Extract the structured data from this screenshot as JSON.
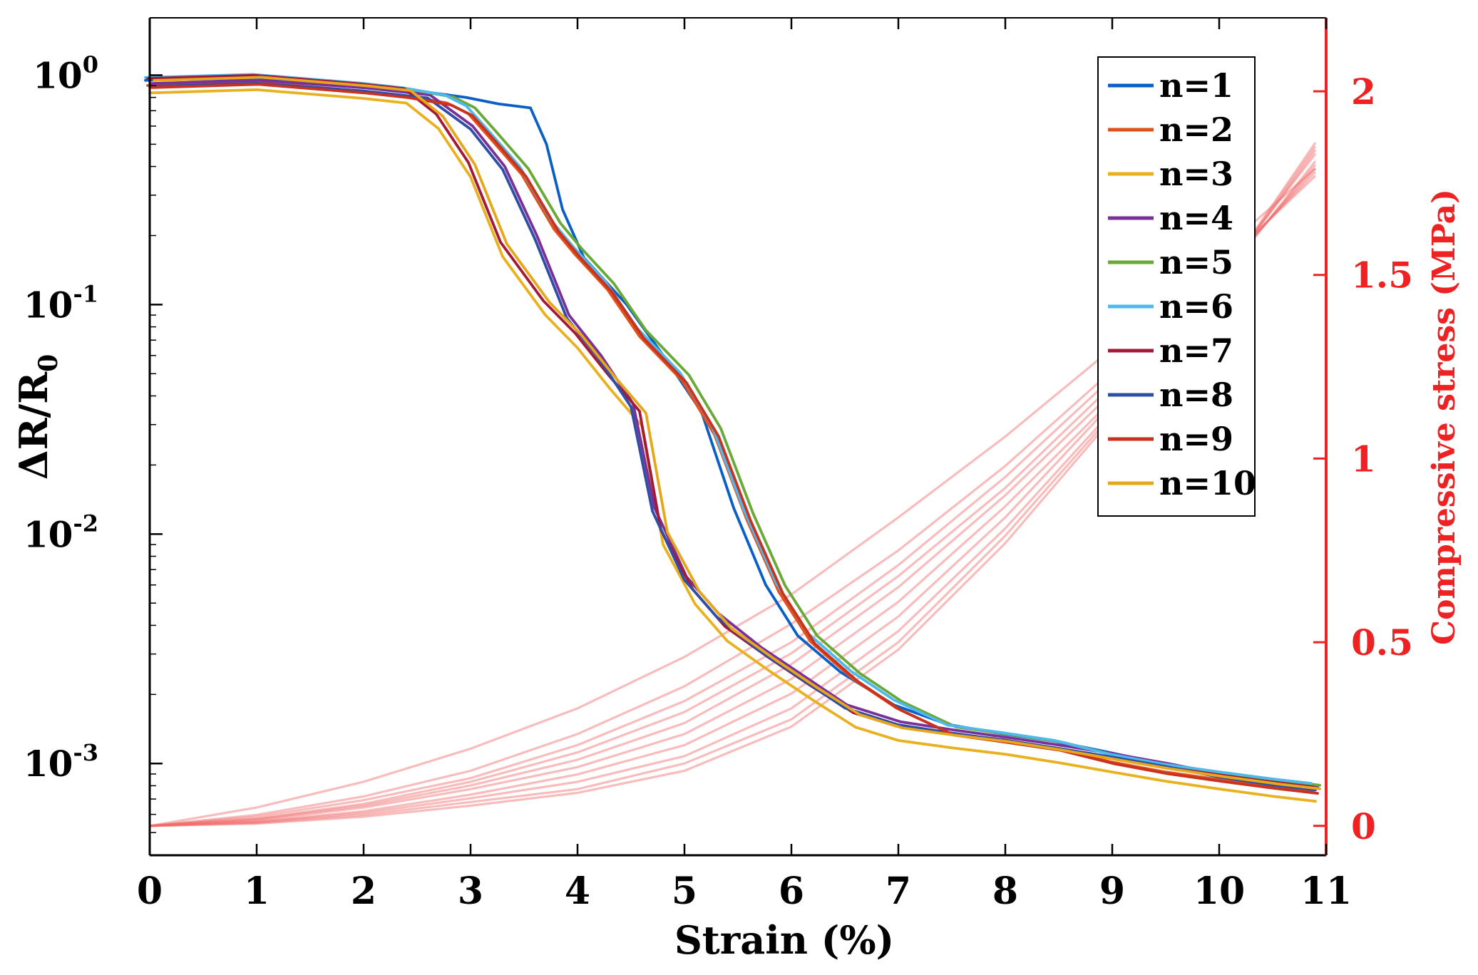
{
  "chart_data": {
    "type": "line",
    "title": "",
    "xlabel": "Strain (%)",
    "ylabel_left": "ΔR/R",
    "ylabel_left_sub": "0",
    "ylabel_right": "Compressive stress (MPa)",
    "xlim": [
      0,
      11
    ],
    "ylim_left_log10": [
      -3.4,
      0.25
    ],
    "ylim_right": [
      -0.08,
      2.2
    ],
    "x_ticks": [
      "0",
      "1",
      "2",
      "3",
      "4",
      "5",
      "6",
      "7",
      "8",
      "9",
      "10",
      "11"
    ],
    "y_left_ticks": [
      {
        "exp": 0,
        "base": "10",
        "sup": "0"
      },
      {
        "exp": -1,
        "base": "10",
        "sup": "-1"
      },
      {
        "exp": -2,
        "base": "10",
        "sup": "-2"
      },
      {
        "exp": -3,
        "base": "10",
        "sup": "-3"
      }
    ],
    "y_right_ticks": [
      {
        "value": 0,
        "label": "0"
      },
      {
        "value": 0.5,
        "label": "0.5"
      },
      {
        "value": 1,
        "label": "1"
      },
      {
        "value": 1.5,
        "label": "1.5"
      },
      {
        "value": 2,
        "label": "2"
      }
    ],
    "legend_position": "top-right",
    "resistance_profiles": {
      "A": [
        [
          0,
          0.93
        ],
        [
          1,
          0.96
        ],
        [
          2,
          0.88
        ],
        [
          2.4,
          0.84
        ],
        [
          2.8,
          0.78
        ],
        [
          3.0,
          0.7
        ],
        [
          3.2,
          0.55
        ],
        [
          3.5,
          0.38
        ],
        [
          3.8,
          0.22
        ],
        [
          4.0,
          0.17
        ],
        [
          4.3,
          0.12
        ],
        [
          4.6,
          0.075
        ],
        [
          5.0,
          0.048
        ],
        [
          5.3,
          0.028
        ],
        [
          5.6,
          0.012
        ],
        [
          5.9,
          0.0058
        ],
        [
          6.2,
          0.0035
        ],
        [
          6.6,
          0.0024
        ],
        [
          7.0,
          0.0018
        ],
        [
          7.5,
          0.0014
        ],
        [
          8.0,
          0.0013
        ],
        [
          8.5,
          0.0012
        ],
        [
          9.0,
          0.00105
        ],
        [
          9.5,
          0.00095
        ],
        [
          10.0,
          0.00088
        ],
        [
          10.5,
          0.00082
        ],
        [
          10.9,
          0.00078
        ]
      ],
      "B": [
        [
          0,
          0.93
        ],
        [
          1,
          0.96
        ],
        [
          2,
          0.88
        ],
        [
          2.4,
          0.84
        ],
        [
          2.7,
          0.65
        ],
        [
          3.0,
          0.4
        ],
        [
          3.3,
          0.18
        ],
        [
          3.7,
          0.1
        ],
        [
          4.0,
          0.072
        ],
        [
          4.3,
          0.048
        ],
        [
          4.6,
          0.033
        ],
        [
          4.8,
          0.01
        ],
        [
          5.1,
          0.0055
        ],
        [
          5.4,
          0.0038
        ],
        [
          5.8,
          0.0028
        ],
        [
          6.2,
          0.0021
        ],
        [
          6.6,
          0.0016
        ],
        [
          7.0,
          0.0014
        ],
        [
          7.5,
          0.0013
        ],
        [
          8.0,
          0.00122
        ],
        [
          8.5,
          0.00112
        ],
        [
          9.0,
          0.00102
        ],
        [
          9.5,
          0.00093
        ],
        [
          10.0,
          0.00086
        ],
        [
          10.5,
          0.0008
        ],
        [
          10.9,
          0.00076
        ]
      ],
      "C": [
        [
          0,
          0.95
        ],
        [
          1,
          0.97
        ],
        [
          2,
          0.9
        ],
        [
          2.5,
          0.86
        ],
        [
          3.0,
          0.8
        ],
        [
          3.3,
          0.75
        ],
        [
          3.6,
          0.72
        ],
        [
          3.75,
          0.5
        ],
        [
          3.9,
          0.26
        ],
        [
          4.1,
          0.16
        ],
        [
          4.5,
          0.1
        ],
        [
          4.9,
          0.055
        ],
        [
          5.2,
          0.034
        ],
        [
          5.5,
          0.013
        ],
        [
          5.8,
          0.006
        ],
        [
          6.1,
          0.0036
        ],
        [
          6.5,
          0.0025
        ],
        [
          7.0,
          0.0018
        ],
        [
          7.5,
          0.00148
        ],
        [
          8.0,
          0.00135
        ],
        [
          8.5,
          0.00125
        ],
        [
          9.0,
          0.00112
        ],
        [
          9.5,
          0.001
        ],
        [
          10.0,
          0.0009
        ],
        [
          10.5,
          0.00082
        ],
        [
          10.9,
          0.00078
        ]
      ],
      "D": [
        [
          0,
          0.92
        ],
        [
          1,
          0.95
        ],
        [
          2,
          0.88
        ],
        [
          2.6,
          0.82
        ],
        [
          3.0,
          0.6
        ],
        [
          3.3,
          0.4
        ],
        [
          3.6,
          0.2
        ],
        [
          3.9,
          0.09
        ],
        [
          4.2,
          0.06
        ],
        [
          4.5,
          0.037
        ],
        [
          4.7,
          0.013
        ],
        [
          5.0,
          0.0065
        ],
        [
          5.3,
          0.0045
        ],
        [
          5.7,
          0.0032
        ],
        [
          6.1,
          0.0024
        ],
        [
          6.5,
          0.0018
        ],
        [
          7.0,
          0.00152
        ],
        [
          7.5,
          0.0014
        ],
        [
          8.0,
          0.0013
        ],
        [
          8.5,
          0.0012
        ],
        [
          9.0,
          0.0011
        ],
        [
          9.5,
          0.001
        ],
        [
          10.0,
          0.0009
        ],
        [
          10.5,
          0.00083
        ],
        [
          10.9,
          0.00079
        ]
      ]
    },
    "series": [
      {
        "name": "n=1",
        "label": "n=1",
        "color": "#0a5fc6",
        "profile": "C",
        "scale": 1.0
      },
      {
        "name": "n=2",
        "label": "n=2",
        "color": "#e0521b",
        "profile": "A",
        "scale": 0.97
      },
      {
        "name": "n=3",
        "label": "n=3",
        "color": "#e8b120",
        "profile": "B",
        "scale": 0.9
      },
      {
        "name": "n=4",
        "label": "n=4",
        "color": "#7b2f9a",
        "profile": "D",
        "scale": 1.0
      },
      {
        "name": "n=5",
        "label": "n=5",
        "color": "#6aa838",
        "profile": "A",
        "scale": 1.03
      },
      {
        "name": "n=6",
        "label": "n=6",
        "color": "#4db9ec",
        "profile": "A",
        "scale": 1.05
      },
      {
        "name": "n=7",
        "label": "n=7",
        "color": "#a2193a",
        "profile": "B",
        "scale": 1.04
      },
      {
        "name": "n=8",
        "label": "n=8",
        "color": "#2f4fa5",
        "profile": "D",
        "scale": 0.97
      },
      {
        "name": "n=9",
        "label": "n=9",
        "color": "#c8321e",
        "profile": "A",
        "scale": 0.95
      },
      {
        "name": "n=10",
        "label": "n=10",
        "color": "#e6a81a",
        "profile": "B",
        "scale": 1.02
      }
    ],
    "stress_series": {
      "color": "#ef6a6a",
      "x": [
        0,
        1,
        2,
        3,
        4,
        5,
        6,
        7,
        8,
        9,
        10,
        10.9
      ],
      "curves": [
        {
          "name": "stress-1",
          "values": [
            0,
            0.05,
            0.12,
            0.21,
            0.32,
            0.46,
            0.63,
            0.84,
            1.06,
            1.3,
            1.56,
            1.79
          ]
        },
        {
          "name": "stress-2",
          "values": [
            0,
            0.03,
            0.08,
            0.15,
            0.25,
            0.38,
            0.55,
            0.75,
            0.98,
            1.24,
            1.52,
            1.77
          ]
        },
        {
          "name": "stress-3",
          "values": [
            0,
            0.025,
            0.07,
            0.13,
            0.22,
            0.34,
            0.5,
            0.71,
            0.95,
            1.22,
            1.51,
            1.78
          ]
        },
        {
          "name": "stress-4",
          "values": [
            0,
            0.02,
            0.06,
            0.12,
            0.2,
            0.31,
            0.47,
            0.68,
            0.92,
            1.2,
            1.5,
            1.79
          ]
        },
        {
          "name": "stress-5",
          "values": [
            0,
            0.018,
            0.055,
            0.11,
            0.18,
            0.28,
            0.44,
            0.65,
            0.9,
            1.18,
            1.49,
            1.8
          ]
        },
        {
          "name": "stress-6",
          "values": [
            0,
            0.015,
            0.05,
            0.1,
            0.16,
            0.25,
            0.4,
            0.61,
            0.87,
            1.16,
            1.48,
            1.81
          ]
        },
        {
          "name": "stress-7",
          "values": [
            0,
            0.012,
            0.04,
            0.085,
            0.14,
            0.22,
            0.36,
            0.57,
            0.84,
            1.15,
            1.49,
            1.83
          ]
        },
        {
          "name": "stress-8",
          "values": [
            0,
            0.01,
            0.035,
            0.075,
            0.12,
            0.19,
            0.32,
            0.53,
            0.81,
            1.13,
            1.48,
            1.84
          ]
        },
        {
          "name": "stress-9",
          "values": [
            0,
            0.008,
            0.03,
            0.065,
            0.1,
            0.17,
            0.29,
            0.5,
            0.79,
            1.12,
            1.48,
            1.85
          ]
        },
        {
          "name": "stress-10",
          "values": [
            0,
            0.006,
            0.025,
            0.055,
            0.09,
            0.15,
            0.27,
            0.48,
            0.77,
            1.11,
            1.48,
            1.86
          ]
        }
      ]
    }
  }
}
